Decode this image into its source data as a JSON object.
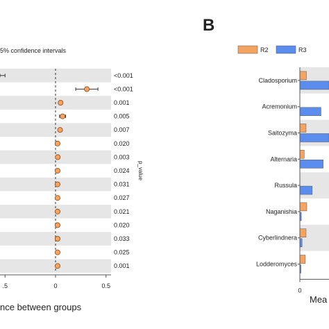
{
  "chart_data": [
    {
      "type": "scatter",
      "panel_title_fragment": "5% confidence intervals",
      "xlabel_fragment": "nce between groups",
      "pvalue_axis_label": "p_value",
      "xlim": [
        -0.55,
        0.55
      ],
      "x_ticks": [
        ".5",
        "0",
        "0.5"
      ],
      "x_tick_values": [
        -0.5,
        0,
        0.5
      ],
      "points": [
        {
          "estimate": -0.6,
          "ci": [
            -0.6,
            -0.5
          ],
          "p_value": "<0.001"
        },
        {
          "estimate": 0.31,
          "ci": [
            0.2,
            0.42
          ],
          "p_value": "<0.001"
        },
        {
          "estimate": 0.05,
          "ci": [
            0.035,
            0.065
          ],
          "p_value": "0.001"
        },
        {
          "estimate": 0.07,
          "ci": [
            0.04,
            0.1
          ],
          "p_value": "0.005"
        },
        {
          "estimate": 0.045,
          "ci": [
            0.03,
            0.06
          ],
          "p_value": "0.007"
        },
        {
          "estimate": 0.02,
          "ci": [
            0.01,
            0.03
          ],
          "p_value": "0.020"
        },
        {
          "estimate": 0.022,
          "ci": [
            0.012,
            0.032
          ],
          "p_value": "0.003"
        },
        {
          "estimate": 0.02,
          "ci": [
            0.01,
            0.03
          ],
          "p_value": "0.024"
        },
        {
          "estimate": 0.02,
          "ci": [
            0.01,
            0.03
          ],
          "p_value": "0.031"
        },
        {
          "estimate": 0.02,
          "ci": [
            0.01,
            0.03
          ],
          "p_value": "0.027"
        },
        {
          "estimate": 0.02,
          "ci": [
            0.01,
            0.03
          ],
          "p_value": "0.021"
        },
        {
          "estimate": 0.02,
          "ci": [
            0.01,
            0.03
          ],
          "p_value": "0.020"
        },
        {
          "estimate": 0.02,
          "ci": [
            0.01,
            0.03
          ],
          "p_value": "0.033"
        },
        {
          "estimate": 0.02,
          "ci": [
            0.01,
            0.03
          ],
          "p_value": "0.025"
        },
        {
          "estimate": 0.02,
          "ci": [
            0.01,
            0.03
          ],
          "p_value": "0.001"
        }
      ],
      "colors": {
        "point": "#f4a460",
        "stroke": "#8b4513",
        "stripe": "#e6e6e6"
      }
    },
    {
      "type": "bar",
      "panel_label": "B",
      "xlabel_fragment": "Mea",
      "x_ticks": [
        "0"
      ],
      "legend": {
        "placement": "top",
        "entries": [
          "R2",
          "R3"
        ]
      },
      "categories": [
        "Cladosporium",
        "Acremonium",
        "Saitozyma",
        "Alternaria",
        "Russula",
        "Naganishia",
        "Cyberlindnera",
        "Lodderomyces"
      ],
      "series": [
        {
          "name": "R2",
          "color": "#f4a460",
          "values": [
            0.9,
            0.0,
            0.85,
            0.6,
            0.0,
            0.95,
            0.85,
            0.75
          ]
        },
        {
          "name": "R3",
          "color": "#5b8def",
          "values": [
            4.0,
            2.9,
            4.0,
            3.2,
            1.7,
            0.2,
            0.3,
            0.15
          ]
        }
      ],
      "colors": {
        "stripe": "#e6e6e6"
      }
    }
  ]
}
